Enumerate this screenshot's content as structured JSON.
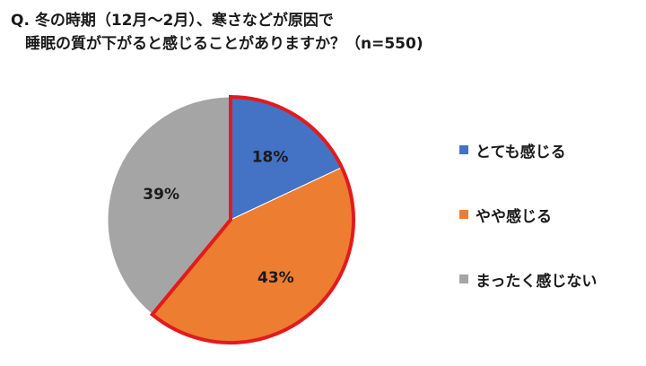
{
  "question": {
    "line1": "Q. 冬の時期（12月～2月）、寒さなどが原因で",
    "line2": "睡眠の質が下がると感じることがありますか？（n=550)"
  },
  "chart_data": {
    "type": "pie",
    "title": "Q. 冬の時期（12月～2月）、寒さなどが原因で 睡眠の質が下がると感じることがありますか？（n=550)",
    "n": 550,
    "categories": [
      "とても感じる",
      "やや感じる",
      "まったく感じない"
    ],
    "values": [
      18,
      43,
      39
    ],
    "labels": [
      "18%",
      "43%",
      "39%"
    ],
    "colors": [
      "#4472C4",
      "#ED7D31",
      "#A5A5A5"
    ],
    "highlight_color": "#E31A1C",
    "highlighted": [
      "とても感じる",
      "やや感じる"
    ],
    "legend_position": "right",
    "start_angle": "12 o'clock, clockwise"
  }
}
